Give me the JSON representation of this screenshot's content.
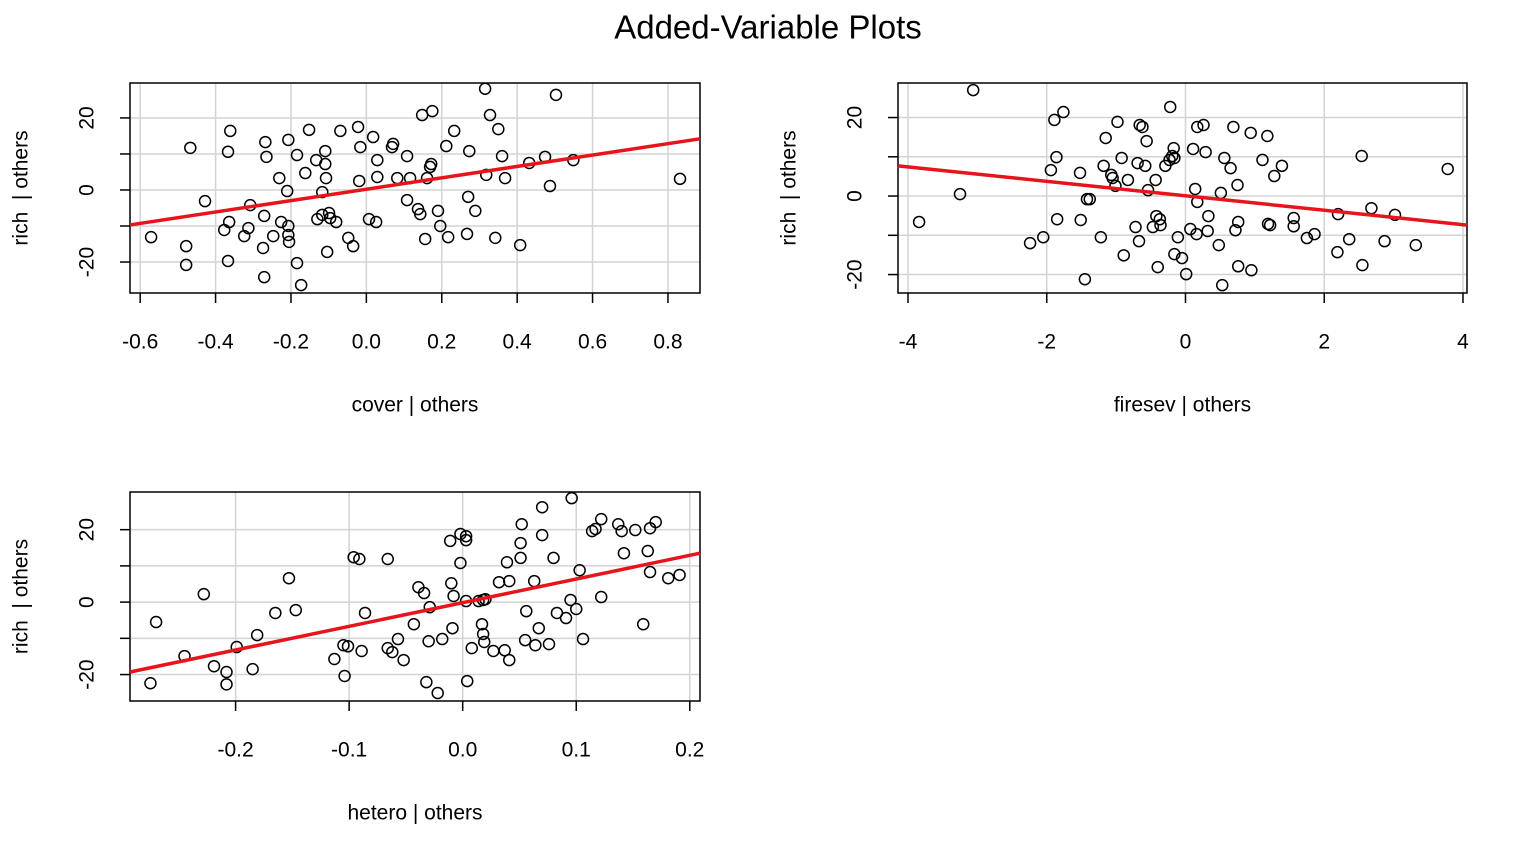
{
  "title": "Added-Variable Plots",
  "chart_data": [
    {
      "type": "scatter",
      "xlabel": "cover | others",
      "ylabel": "rich  | others",
      "color": "#000000",
      "grid": true,
      "x": [
        -0.571,
        -0.478,
        -0.478,
        -0.467,
        -0.428,
        -0.377,
        -0.364,
        -0.367,
        -0.361,
        -0.367,
        -0.324,
        -0.313,
        -0.308,
        -0.274,
        -0.271,
        -0.268,
        -0.265,
        -0.271,
        -0.247,
        -0.231,
        -0.226,
        -0.21,
        -0.207,
        -0.207,
        -0.207,
        -0.205,
        -0.184,
        -0.184,
        -0.173,
        -0.162,
        -0.152,
        -0.133,
        -0.13,
        -0.117,
        -0.117,
        -0.109,
        -0.109,
        -0.107,
        -0.104,
        -0.099,
        -0.096,
        -0.08,
        -0.069,
        -0.048,
        -0.035,
        -0.022,
        -0.019,
        -0.016,
        0.007,
        0.018,
        0.026,
        0.029,
        0.029,
        0.068,
        0.071,
        0.082,
        0.108,
        0.108,
        0.116,
        0.137,
        0.143,
        0.148,
        0.156,
        0.161,
        0.169,
        0.172,
        0.175,
        0.19,
        0.196,
        0.212,
        0.217,
        0.233,
        0.267,
        0.27,
        0.273,
        0.289,
        0.315,
        0.318,
        0.328,
        0.342,
        0.35,
        0.36,
        0.368,
        0.408,
        0.432,
        0.474,
        0.487,
        0.503,
        0.549,
        0.832
      ],
      "values": [
        -13.1,
        -15.6,
        -20.8,
        11.7,
        -3.1,
        -11.1,
        -8.9,
        10.6,
        16.4,
        -19.7,
        -12.8,
        -10.6,
        -4.2,
        -16.1,
        -7.2,
        13.3,
        9.2,
        -24.2,
        -12.8,
        3.3,
        -8.9,
        -0.3,
        13.9,
        -10,
        -12.5,
        -14.4,
        9.7,
        -20.3,
        -26.4,
        4.7,
        16.7,
        8.3,
        -8.1,
        -0.6,
        -6.9,
        10.8,
        7.2,
        3.3,
        -17.2,
        -6.4,
        -7.8,
        -8.9,
        16.4,
        -13.3,
        -15.6,
        17.5,
        2.5,
        11.9,
        -8.1,
        14.7,
        -8.9,
        8.3,
        3.6,
        11.9,
        12.8,
        3.3,
        9.4,
        -2.8,
        3.3,
        -5.3,
        -6.7,
        20.8,
        -13.6,
        3.3,
        6.4,
        7.2,
        21.9,
        -5.8,
        -10,
        12.2,
        -13.1,
        16.4,
        -12.2,
        -1.9,
        10.8,
        -5.8,
        28.1,
        4.2,
        20.8,
        -13.3,
        16.9,
        9.4,
        3.3,
        -15.3,
        7.5,
        9.2,
        1.1,
        26.4,
        8.3,
        3.1
      ],
      "fit": {
        "x": [
          -0.627,
          0.885
        ],
        "values": [
          -9.7,
          14.2
        ],
        "color": "#e8141c"
      },
      "xlim": [
        -0.627,
        0.885
      ],
      "ylim": [
        -28.6,
        29.7
      ],
      "xticks": [
        -0.6,
        -0.4,
        -0.2,
        {
          "value": 0,
          "label": "0.0"
        },
        0.2,
        0.4,
        0.6,
        0.8
      ],
      "yticks": [
        -20,
        0,
        20
      ],
      "yminorticks": [
        -10,
        10
      ]
    },
    {
      "type": "scatter",
      "xlabel": "firesev | others",
      "ylabel": "rich  | others",
      "color": "#000000",
      "grid": true,
      "x": [
        -3.84,
        -3.25,
        -3.06,
        -2.24,
        -2.05,
        -1.94,
        -1.89,
        -1.86,
        -1.85,
        -1.76,
        -1.52,
        -1.51,
        -1.45,
        -1.42,
        -1.38,
        -1.22,
        -1.18,
        -1.15,
        -1.07,
        -1.05,
        -1.01,
        -0.98,
        -0.92,
        -0.89,
        -0.83,
        -0.72,
        -0.69,
        -0.67,
        -0.66,
        -0.62,
        -0.58,
        -0.56,
        -0.54,
        -0.47,
        -0.43,
        -0.42,
        -0.4,
        -0.37,
        -0.36,
        -0.29,
        -0.23,
        -0.22,
        -0.19,
        -0.17,
        -0.16,
        -0.16,
        -0.11,
        -0.05,
        0.01,
        0.07,
        0.11,
        0.14,
        0.16,
        0.17,
        0.17,
        0.26,
        0.29,
        0.32,
        0.33,
        0.48,
        0.51,
        0.53,
        0.56,
        0.65,
        0.69,
        0.72,
        0.75,
        0.76,
        0.76,
        0.94,
        0.95,
        1.11,
        1.18,
        1.19,
        1.22,
        1.28,
        1.39,
        1.56,
        1.56,
        1.75,
        1.86,
        2.19,
        2.2,
        2.36,
        2.54,
        2.55,
        2.68,
        2.87,
        3.02,
        3.32,
        3.78
      ],
      "values": [
        -6.6,
        0.5,
        27,
        -12,
        -10.5,
        6.6,
        19.4,
        9.9,
        -5.9,
        21.4,
        5.9,
        -6.1,
        -21.2,
        -0.8,
        -0.8,
        -10.5,
        7.7,
        14.8,
        5.4,
        4.6,
        2.6,
        18.9,
        9.7,
        -15.1,
        4.1,
        -7.9,
        8.4,
        -11.5,
        18.1,
        17.6,
        7.7,
        14,
        1.5,
        -7.9,
        4.1,
        -5.1,
        -18.1,
        -5.9,
        -7.4,
        7.7,
        9.2,
        22.7,
        10.2,
        12.2,
        9.7,
        -14.8,
        -10.5,
        -15.8,
        -19.9,
        -8.4,
        12,
        1.8,
        -9.7,
        -1.5,
        17.6,
        18.1,
        11.2,
        -8.9,
        -5.1,
        -12.5,
        0.8,
        -22.7,
        9.7,
        7.1,
        17.6,
        -8.7,
        2.8,
        -6.6,
        -17.9,
        16.1,
        -18.9,
        9.2,
        15.3,
        -7.1,
        -7.4,
        5.1,
        7.7,
        -5.6,
        -7.7,
        -10.7,
        -9.7,
        -14.3,
        -4.6,
        -11,
        10.2,
        -17.6,
        -3.1,
        -11.5,
        -4.8,
        -12.5,
        6.9
      ],
      "fit": {
        "x": [
          -4.144,
          4.058
        ],
        "values": [
          7.7,
          -7.4
        ],
        "color": "#e8141c"
      },
      "xlim": [
        -4.144,
        4.058
      ],
      "ylim": [
        -24.7,
        28.8
      ],
      "xticks": [
        -4,
        -2,
        0,
        2,
        4
      ],
      "yticks": [
        -20,
        0,
        20
      ],
      "yminorticks": [
        -10,
        10
      ]
    },
    {
      "type": "scatter",
      "xlabel": "hetero | others",
      "ylabel": "rich  | others",
      "color": "#000000",
      "grid": true,
      "x": [
        -0.275,
        -0.27,
        -0.245,
        -0.228,
        -0.219,
        -0.208,
        -0.208,
        -0.199,
        -0.185,
        -0.181,
        -0.165,
        -0.153,
        -0.147,
        -0.113,
        -0.105,
        -0.104,
        -0.101,
        -0.096,
        -0.091,
        -0.089,
        -0.086,
        -0.066,
        -0.066,
        -0.062,
        -0.057,
        -0.052,
        -0.043,
        -0.039,
        -0.034,
        -0.032,
        -0.03,
        -0.029,
        -0.022,
        -0.018,
        -0.011,
        -0.01,
        -0.009,
        -0.008,
        -0.002,
        -0.002,
        0.003,
        0.003,
        0.003,
        0.004,
        0.008,
        0.014,
        0.017,
        0.018,
        0.018,
        0.019,
        0.02,
        0.027,
        0.032,
        0.037,
        0.039,
        0.041,
        0.041,
        0.051,
        0.051,
        0.052,
        0.055,
        0.056,
        0.063,
        0.064,
        0.067,
        0.07,
        0.07,
        0.076,
        0.08,
        0.083,
        0.091,
        0.095,
        0.096,
        0.1,
        0.103,
        0.106,
        0.114,
        0.117,
        0.122,
        0.122,
        0.137,
        0.14,
        0.142,
        0.152,
        0.159,
        0.163,
        0.165,
        0.165,
        0.17,
        0.181,
        0.191
      ],
      "values": [
        -22.4,
        -5.5,
        -14.9,
        2.2,
        -17.7,
        -19.3,
        -22.7,
        -12.4,
        -18.5,
        -9.1,
        -3,
        6.6,
        -2.2,
        -15.7,
        -11.9,
        -20.4,
        -12.2,
        12.4,
        11.9,
        -13.5,
        -3,
        11.9,
        -12.7,
        -13.8,
        -10.2,
        -16,
        -6.1,
        4.1,
        2.5,
        -22.1,
        -10.8,
        -1.4,
        -25.1,
        -10.2,
        16.9,
        5.2,
        -7.2,
        1.7,
        18.8,
        10.8,
        18.2,
        17.1,
        0.3,
        -21.8,
        -12.7,
        0.3,
        -6.1,
        -8.8,
        0.6,
        -11,
        0.8,
        -13.5,
        5.5,
        -13.3,
        11,
        5.8,
        -16,
        12.2,
        16.3,
        21.5,
        -10.5,
        -2.5,
        5.8,
        -11.9,
        -7.2,
        18.5,
        26.2,
        -11.6,
        12.2,
        -3,
        -4.4,
        0.6,
        28.7,
        -1.9,
        8.8,
        -10.2,
        19.6,
        20.2,
        22.9,
        1.4,
        21.5,
        19.6,
        13.5,
        19.9,
        -6.1,
        14.1,
        20.4,
        8.3,
        22.1,
        6.6,
        7.5
      ],
      "fit": {
        "x": [
          -0.293,
          0.209
        ],
        "values": [
          -19.3,
          13.5
        ],
        "color": "#e8141c"
      },
      "xlim": [
        -0.293,
        0.209
      ],
      "ylim": [
        -27.3,
        30.4
      ],
      "xticks": [
        -0.2,
        -0.1,
        {
          "value": 0,
          "label": "0.0"
        },
        0.1,
        0.2
      ],
      "yticks": [
        -20,
        0,
        20
      ],
      "yminorticks": [
        -10,
        10
      ]
    }
  ]
}
